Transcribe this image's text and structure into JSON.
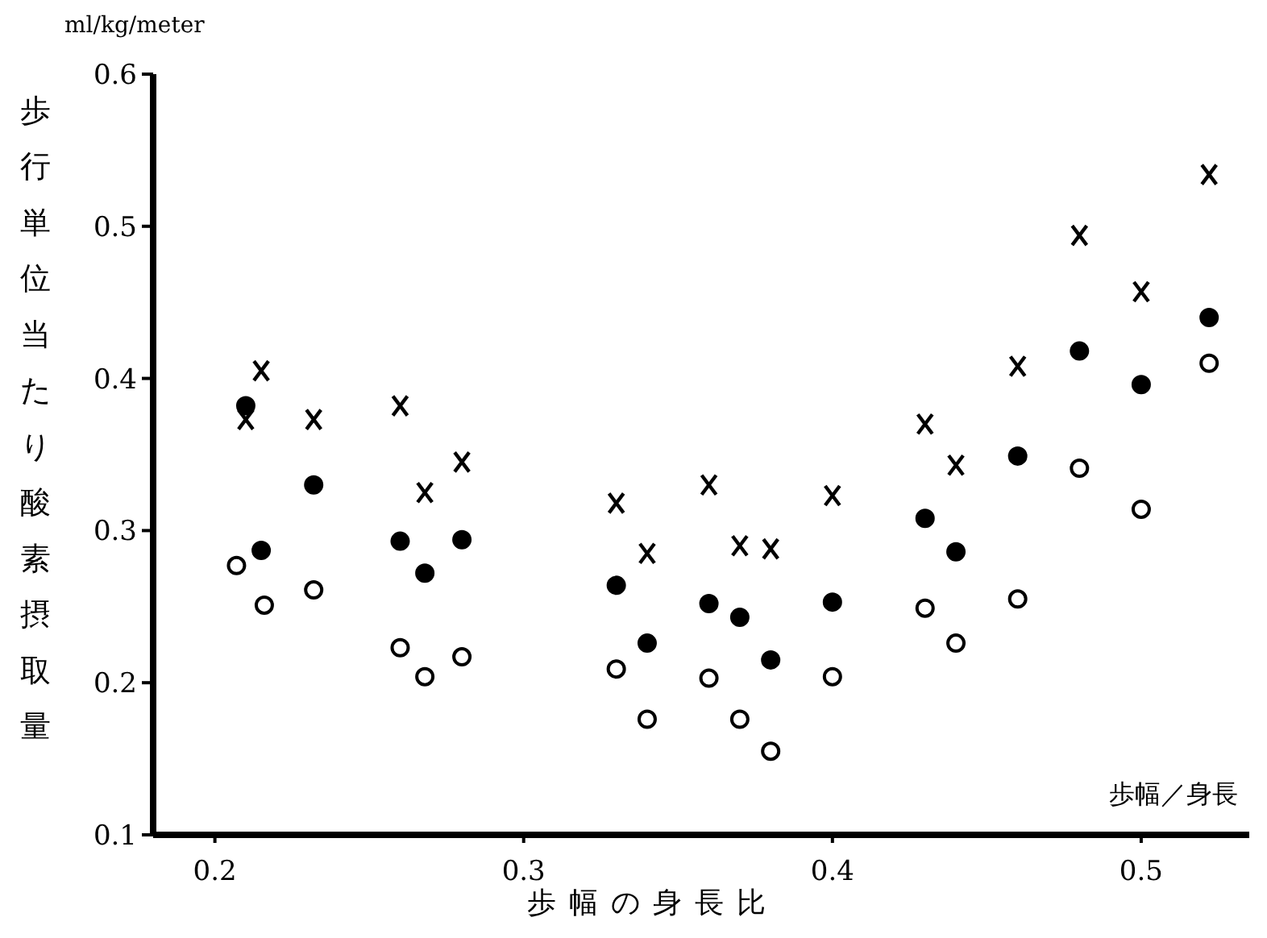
{
  "chart_data": {
    "type": "scatter",
    "ylabel": "歩行単位当たり酸素摂取量",
    "xlabel": "歩幅の身長比",
    "annotations": [
      "ml/kg/meter",
      "歩幅／身長"
    ],
    "xlim": [
      0.18,
      0.535
    ],
    "ylim": [
      0.1,
      0.6
    ],
    "xticks": [
      0.2,
      0.3,
      0.4,
      0.5
    ],
    "yticks": [
      0.1,
      0.2,
      0.3,
      0.4,
      0.5,
      0.6
    ],
    "grid": false,
    "series": [
      {
        "color": "#000000",
        "marker": "cross",
        "x": [
          0.21,
          0.215,
          0.232,
          0.26,
          0.268,
          0.28,
          0.33,
          0.34,
          0.36,
          0.37,
          0.38,
          0.4,
          0.43,
          0.44,
          0.46,
          0.48,
          0.5,
          0.522
        ],
        "values": [
          0.373,
          0.405,
          0.373,
          0.382,
          0.325,
          0.345,
          0.318,
          0.285,
          0.33,
          0.29,
          0.288,
          0.323,
          0.37,
          0.343,
          0.408,
          0.494,
          0.457,
          0.534
        ]
      },
      {
        "color": "#000000",
        "marker": "circle",
        "x": [
          0.21,
          0.215,
          0.232,
          0.26,
          0.268,
          0.28,
          0.33,
          0.34,
          0.36,
          0.37,
          0.38,
          0.4,
          0.43,
          0.44,
          0.46,
          0.48,
          0.5,
          0.522
        ],
        "values": [
          0.382,
          0.287,
          0.33,
          0.293,
          0.272,
          0.294,
          0.264,
          0.226,
          0.252,
          0.243,
          0.215,
          0.253,
          0.308,
          0.286,
          0.349,
          0.418,
          0.396,
          0.44
        ]
      },
      {
        "color": "#000000",
        "marker": "circle",
        "x": [
          0.207,
          0.216,
          0.232,
          0.26,
          0.268,
          0.28,
          0.33,
          0.34,
          0.36,
          0.37,
          0.38,
          0.4,
          0.43,
          0.44,
          0.46,
          0.48,
          0.5,
          0.522
        ],
        "values": [
          0.277,
          0.251,
          0.261,
          0.223,
          0.204,
          0.217,
          0.209,
          0.176,
          0.203,
          0.176,
          0.155,
          0.204,
          0.249,
          0.226,
          0.255,
          0.341,
          0.314,
          0.41
        ]
      }
    ]
  }
}
